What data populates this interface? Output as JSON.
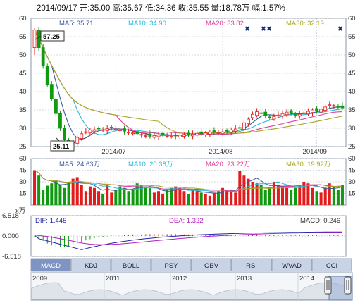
{
  "colors": {
    "up": "#e31b1b",
    "down": "#109a10",
    "ma5": "#3a5a9a",
    "ma10": "#27b8d8",
    "ma20": "#e0409a",
    "ma30": "#a8a820",
    "grid": "#c7cdd9",
    "frame": "#8a94a8",
    "tab_bg": "#c9d3e6",
    "tab_active": "#7e94c2",
    "macd_line": "#2222aa",
    "dea_line": "#b020c0"
  },
  "header": {
    "text": "2014/09/17 开:35.00 高:35.67 低:34.36 收:35.55 量:18.78万 幅:1.57%"
  },
  "price_panel": {
    "legend": [
      {
        "name": "MA5",
        "text": "MA5: 35.71"
      },
      {
        "name": "MA10",
        "text": "MA10: 34.90"
      },
      {
        "name": "MA20",
        "text": "MA20: 33.82"
      },
      {
        "name": "MA30",
        "text": "MA30: 32.19"
      }
    ],
    "y_ticks": [
      "60",
      "55",
      "50",
      "45",
      "40",
      "35",
      "30",
      "25"
    ],
    "high_label": "57.25",
    "low_label": "25.11",
    "x_ticks": [
      "2014/07",
      "2014/08",
      "2014/09"
    ],
    "markers": [
      "✖",
      "✖",
      "✖",
      "✖"
    ]
  },
  "volume_panel": {
    "legend": [
      {
        "name": "MA5",
        "text": "MA5: 24.63万"
      },
      {
        "name": "MA10",
        "text": "MA10: 20.38万"
      },
      {
        "name": "MA20",
        "text": "MA20: 23.22万"
      },
      {
        "name": "MA30",
        "text": "MA30: 19.92万"
      }
    ],
    "y_ticks": [
      "60",
      "45",
      "30",
      "15"
    ],
    "unit_label": "x万"
  },
  "macd_panel": {
    "dif_text": "DIF: 1.445",
    "dea_text": "DEA: 1.322",
    "macd_text": "MACD: 0.246",
    "y_ticks": [
      "6.518",
      "0.000",
      "-6.518"
    ]
  },
  "tabs": [
    "MACD",
    "KDJ",
    "BOLL",
    "PSY",
    "OBV",
    "RSI",
    "WVAD",
    "CCI"
  ],
  "active_tab": "MACD",
  "navigator": {
    "year_labels": [
      "2009",
      "2011",
      "2012",
      "2013",
      "2014"
    ]
  },
  "chart_data": [
    {
      "type": "candlestick",
      "title": "2014/09/17 开:35.00 高:35.67 低:34.36 收:35.55 量:18.78万 幅:1.57%",
      "ylim": [
        25,
        60
      ],
      "x_ticks": [
        "2014/07",
        "2014/08",
        "2014/09"
      ],
      "first_candle": {
        "open": 52,
        "high": 57.25,
        "low": 50,
        "close": 56.8
      },
      "low_point": 25.11,
      "close_series": [
        56.8,
        52,
        47,
        42,
        38,
        34,
        30,
        27,
        25.6,
        26.2,
        27.5,
        28.5,
        29.0,
        29.5,
        29.6,
        29.8,
        29.6,
        29.9,
        30.1,
        29.8,
        29.5,
        29.2,
        28.9,
        28.7,
        28.5,
        28.3,
        28.0,
        27.8,
        28.0,
        28.2,
        28.3,
        28.0,
        27.8,
        27.9,
        28.1,
        28.3,
        28.2,
        28.4,
        28.6,
        28.5,
        28.7,
        28.9,
        29.0,
        28.8,
        29.0,
        29.2,
        29.5,
        29.8,
        30.0,
        31.5,
        32.5,
        33.8,
        34.5,
        34.0,
        33.4,
        32.8,
        33.2,
        33.6,
        34.0,
        34.4,
        34.0,
        33.6,
        33.8,
        34.2,
        34.6,
        35.0,
        34.7,
        35.2,
        35.8,
        36.4,
        36.2,
        35.7,
        35.55
      ],
      "series": [
        {
          "name": "MA5",
          "last": 35.71
        },
        {
          "name": "MA10",
          "last": 34.9
        },
        {
          "name": "MA20",
          "last": 33.82
        },
        {
          "name": "MA30",
          "last": 32.19
        }
      ]
    },
    {
      "type": "bar",
      "ylabel": "x万",
      "ylim": [
        0,
        60
      ],
      "values": [
        45,
        38,
        20,
        25,
        28,
        32,
        26,
        22,
        30,
        34,
        36,
        26,
        18,
        24,
        22,
        18,
        14,
        26,
        16,
        20,
        24,
        22,
        18,
        20,
        28,
        26,
        24,
        22,
        16,
        18,
        14,
        20,
        22,
        24,
        22,
        18,
        14,
        20,
        18,
        16,
        14,
        12,
        16,
        18,
        22,
        20,
        18,
        16,
        44,
        38,
        34,
        30,
        28,
        26,
        20,
        22,
        30,
        26,
        24,
        22,
        20,
        22,
        26,
        30,
        28,
        22,
        18,
        16,
        22,
        28,
        24,
        20,
        26
      ],
      "series": [
        {
          "name": "MA5",
          "last": 24.63
        },
        {
          "name": "MA10",
          "last": 20.38
        },
        {
          "name": "MA20",
          "last": 23.22
        },
        {
          "name": "MA30",
          "last": 19.92
        }
      ]
    },
    {
      "type": "bar",
      "ylim": [
        -6.518,
        6.518
      ],
      "values": [
        -0.2,
        -0.8,
        -1.6,
        -2.4,
        -3.0,
        -3.4,
        -3.6,
        -3.5,
        -3.2,
        -2.8,
        -2.3,
        -1.8,
        -1.4,
        -1.0,
        -0.7,
        -0.5,
        -0.3,
        -0.1,
        0.1,
        0.2,
        0.3,
        0.4,
        0.4,
        0.5,
        0.5,
        0.5,
        0.6,
        0.6,
        0.6,
        0.6,
        0.6,
        0.6,
        0.6,
        0.6,
        0.5,
        0.5,
        0.5,
        0.5,
        0.4,
        0.4,
        0.4,
        0.4,
        0.3,
        0.3,
        0.3,
        0.3,
        0.3,
        0.2,
        0.2,
        0.4,
        0.5,
        0.6,
        0.7,
        0.6,
        0.5,
        0.4,
        0.3,
        0.3,
        0.3,
        0.3,
        0.2,
        0.2,
        0.2,
        0.2,
        0.2,
        0.2,
        0.2,
        0.2,
        0.2,
        0.3,
        0.3,
        0.3,
        0.246
      ],
      "series": [
        {
          "name": "DIF",
          "last": 1.445
        },
        {
          "name": "DEA",
          "last": 1.322
        },
        {
          "name": "MACD",
          "last": 0.246
        }
      ]
    }
  ]
}
